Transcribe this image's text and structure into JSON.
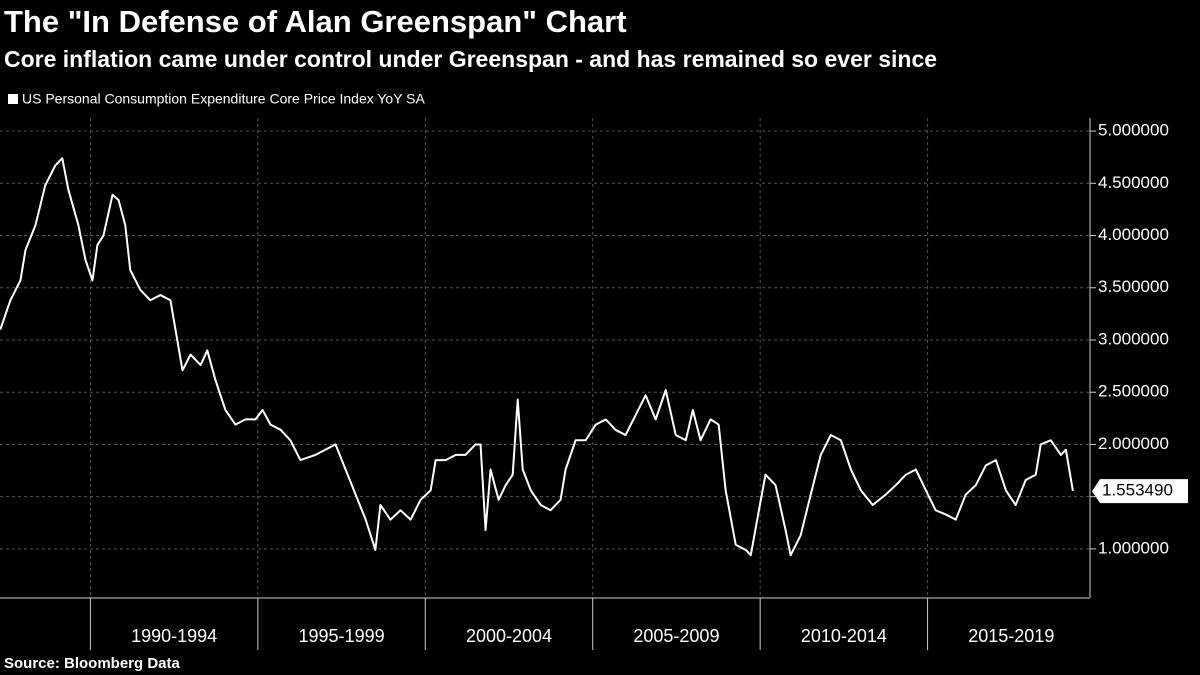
{
  "chart_data": {
    "type": "line",
    "title": "The \"In Defense of Alan Greenspan\" Chart",
    "subtitle": "Core inflation came under control under Greenspan - and has remained so ever since",
    "source": "Source: Bloomberg Data",
    "x": [
      1987.31,
      1987.61,
      1987.91,
      1988.06,
      1988.36,
      1988.65,
      1988.95,
      1989.16,
      1989.34,
      1989.64,
      1989.85,
      1990.06,
      1990.21,
      1990.39,
      1990.66,
      1990.84,
      1991.04,
      1991.19,
      1991.49,
      1991.79,
      1992.09,
      1992.39,
      1992.54,
      1992.75,
      1992.99,
      1993.29,
      1993.49,
      1993.73,
      1994.03,
      1994.33,
      1994.63,
      1994.93,
      1995.14,
      1995.38,
      1995.68,
      1995.97,
      1996.27,
      1996.72,
      1997.02,
      1997.32,
      1997.62,
      1997.92,
      1998.22,
      1998.51,
      1998.66,
      1998.96,
      1999.26,
      1999.56,
      1999.86,
      2000.16,
      2000.31,
      2000.61,
      2000.91,
      2001.2,
      2001.5,
      2001.65,
      2001.8,
      2001.95,
      2002.19,
      2002.4,
      2002.61,
      2002.76,
      2002.91,
      2003.15,
      2003.45,
      2003.74,
      2004.04,
      2004.19,
      2004.49,
      2004.79,
      2005.09,
      2005.39,
      2005.68,
      2005.98,
      2006.28,
      2006.58,
      2006.88,
      2007.18,
      2007.48,
      2007.78,
      2007.99,
      2008.22,
      2008.52,
      2008.76,
      2008.97,
      2009.27,
      2009.57,
      2009.72,
      2010.02,
      2010.16,
      2010.46,
      2010.76,
      2010.91,
      2011.21,
      2011.51,
      2011.81,
      2012.11,
      2012.41,
      2012.71,
      2013.01,
      2013.36,
      2013.75,
      2014.05,
      2014.35,
      2014.65,
      2014.95,
      2015.24,
      2015.54,
      2015.84,
      2016.14,
      2016.44,
      2016.74,
      2017.04,
      2017.34,
      2017.63,
      2017.93,
      2018.23,
      2018.38,
      2018.68,
      2018.98,
      2019.13,
      2019.34
    ],
    "series": [
      {
        "name": "US Personal Consumption Expenditure Core Price Index YoY SA",
        "color": "#ffffff",
        "values": [
          3.1,
          3.38,
          3.57,
          3.86,
          4.1,
          4.48,
          4.67,
          4.74,
          4.44,
          4.1,
          3.77,
          3.57,
          3.91,
          4.0,
          4.39,
          4.34,
          4.1,
          3.67,
          3.48,
          3.38,
          3.43,
          3.38,
          3.1,
          2.71,
          2.86,
          2.76,
          2.9,
          2.62,
          2.33,
          2.19,
          2.24,
          2.24,
          2.33,
          2.19,
          2.14,
          2.04,
          1.85,
          1.9,
          1.95,
          2.0,
          1.76,
          1.52,
          1.28,
          0.99,
          1.42,
          1.28,
          1.37,
          1.28,
          1.47,
          1.56,
          1.85,
          1.85,
          1.9,
          1.9,
          2.0,
          2.0,
          1.18,
          1.76,
          1.47,
          1.61,
          1.71,
          2.43,
          1.76,
          1.56,
          1.42,
          1.37,
          1.47,
          1.76,
          2.04,
          2.04,
          2.19,
          2.24,
          2.14,
          2.09,
          2.28,
          2.47,
          2.24,
          2.52,
          2.09,
          2.04,
          2.33,
          2.04,
          2.24,
          2.19,
          1.56,
          1.04,
          0.99,
          0.94,
          1.47,
          1.71,
          1.61,
          1.18,
          0.94,
          1.13,
          1.52,
          1.9,
          2.09,
          2.04,
          1.76,
          1.56,
          1.42,
          1.52,
          1.61,
          1.71,
          1.76,
          1.56,
          1.37,
          1.33,
          1.28,
          1.52,
          1.61,
          1.8,
          1.85,
          1.56,
          1.42,
          1.66,
          1.71,
          2.0,
          2.04,
          1.9,
          1.95,
          1.55349
        ]
      }
    ],
    "last_value_label": "1.553490",
    "xlim": [
      1987.3,
      2019.85
    ],
    "xticks": [
      {
        "value": 1990,
        "label": "1990-1994"
      },
      {
        "value": 1995,
        "label": "1995-1999"
      },
      {
        "value": 2000,
        "label": "2000-2004"
      },
      {
        "value": 2005,
        "label": "2005-2009"
      },
      {
        "value": 2010,
        "label": "2010-2014"
      },
      {
        "value": 2015,
        "label": "2015-2019"
      }
    ],
    "ylim": [
      0.53,
      5.125
    ],
    "yticks": [
      {
        "value": 1,
        "label": "1.000000"
      },
      {
        "value": 1.5,
        "label": "1.500000"
      },
      {
        "value": 2,
        "label": "2.000000"
      },
      {
        "value": 2.5,
        "label": "2.500000"
      },
      {
        "value": 3,
        "label": "3.000000"
      },
      {
        "value": 3.5,
        "label": "3.500000"
      },
      {
        "value": 4,
        "label": "4.000000"
      },
      {
        "value": 4.5,
        "label": "4.500000"
      },
      {
        "value": 5,
        "label": "5.000000"
      }
    ],
    "grid": true
  }
}
